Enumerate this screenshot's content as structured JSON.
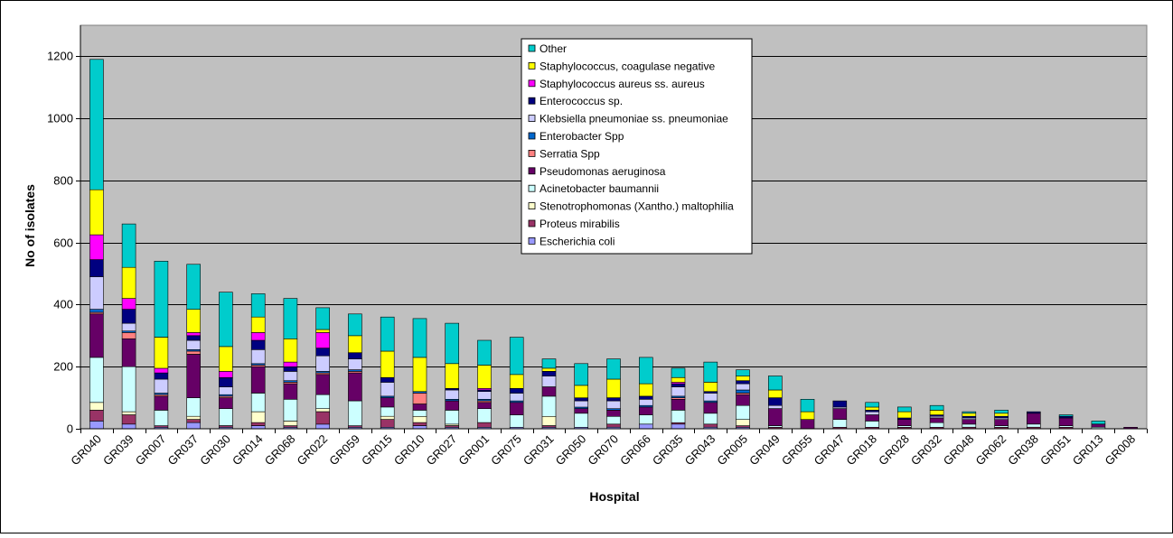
{
  "chart_data": {
    "type": "bar",
    "stacked": true,
    "xlabel": "Hospital",
    "ylabel": "No of isolates",
    "ylim": [
      0,
      1300
    ],
    "yticks": [
      0,
      200,
      400,
      600,
      800,
      1000,
      1200
    ],
    "grid": true,
    "legend_position": "top-center",
    "plot_background": "#c0c0c0",
    "categories": [
      "GR040",
      "GR039",
      "GR007",
      "GR037",
      "GR030",
      "GR014",
      "GR068",
      "GR022",
      "GR059",
      "GR015",
      "GR010",
      "GR027",
      "GR001",
      "GR075",
      "GR031",
      "GR050",
      "GR070",
      "GR066",
      "GR035",
      "GR043",
      "GR005",
      "GR049",
      "GR055",
      "GR047",
      "GR018",
      "GR028",
      "GR032",
      "GR048",
      "GR062",
      "GR038",
      "GR051",
      "GR013",
      "GR008"
    ],
    "series": [
      {
        "name": "Escherichia coli",
        "color": "#9999ff",
        "values": [
          25,
          15,
          5,
          20,
          5,
          10,
          5,
          15,
          5,
          5,
          10,
          5,
          5,
          5,
          5,
          5,
          5,
          15,
          15,
          5,
          5,
          0,
          0,
          0,
          0,
          0,
          0,
          0,
          0,
          0,
          0,
          0,
          0
        ]
      },
      {
        "name": "Proteus mirabilis",
        "color": "#993366",
        "values": [
          35,
          30,
          5,
          10,
          5,
          10,
          5,
          40,
          5,
          25,
          10,
          5,
          15,
          0,
          5,
          0,
          10,
          0,
          5,
          10,
          5,
          5,
          0,
          5,
          5,
          5,
          5,
          5,
          5,
          5,
          5,
          0,
          0
        ]
      },
      {
        "name": "Stenotrophomonas (Xantho.) maltophilia",
        "color": "#ffffcc",
        "values": [
          25,
          10,
          0,
          10,
          0,
          35,
          15,
          10,
          0,
          10,
          20,
          5,
          0,
          0,
          30,
          0,
          0,
          0,
          0,
          0,
          20,
          0,
          0,
          0,
          0,
          0,
          0,
          0,
          0,
          0,
          0,
          0,
          0
        ]
      },
      {
        "name": "Acinetobacter baumannii",
        "color": "#ccffff",
        "values": [
          145,
          145,
          50,
          60,
          55,
          60,
          70,
          45,
          80,
          30,
          20,
          45,
          45,
          40,
          65,
          45,
          25,
          30,
          40,
          35,
          45,
          5,
          0,
          25,
          20,
          5,
          15,
          10,
          5,
          10,
          5,
          5,
          0
        ]
      },
      {
        "name": "Pseudomonas aeruginosa",
        "color": "#660066",
        "values": [
          140,
          90,
          45,
          140,
          35,
          85,
          50,
          65,
          90,
          30,
          20,
          30,
          20,
          40,
          30,
          15,
          20,
          25,
          35,
          35,
          35,
          55,
          30,
          35,
          20,
          20,
          15,
          15,
          20,
          35,
          25,
          10,
          5
        ]
      },
      {
        "name": "Serratia Spp",
        "color": "#ff8080",
        "values": [
          5,
          20,
          5,
          10,
          5,
          5,
          5,
          5,
          5,
          0,
          35,
          0,
          5,
          0,
          0,
          0,
          0,
          0,
          5,
          0,
          5,
          0,
          0,
          0,
          0,
          0,
          0,
          0,
          0,
          0,
          0,
          0,
          0
        ]
      },
      {
        "name": "Enterobacter Spp",
        "color": "#0066cc",
        "values": [
          10,
          5,
          5,
          5,
          5,
          5,
          5,
          5,
          5,
          5,
          5,
          5,
          5,
          5,
          0,
          5,
          5,
          5,
          5,
          5,
          10,
          0,
          0,
          0,
          0,
          0,
          0,
          0,
          0,
          0,
          0,
          0,
          0
        ]
      },
      {
        "name": "Klebsiella pneumoniae ss. pneumoniae",
        "color": "#ccccff",
        "values": [
          105,
          25,
          45,
          30,
          25,
          45,
          30,
          50,
          35,
          45,
          0,
          30,
          25,
          25,
          35,
          20,
          25,
          20,
          30,
          25,
          20,
          10,
          0,
          5,
          10,
          0,
          5,
          5,
          5,
          0,
          0,
          0,
          0
        ]
      },
      {
        "name": "Enterococcus sp.",
        "color": "#000080",
        "values": [
          55,
          45,
          20,
          15,
          30,
          30,
          15,
          25,
          20,
          15,
          0,
          5,
          5,
          15,
          15,
          10,
          10,
          10,
          10,
          5,
          10,
          25,
          0,
          20,
          5,
          5,
          5,
          5,
          5,
          5,
          5,
          0,
          0
        ]
      },
      {
        "name": "Staphylococcus aureus ss. aureus",
        "color": "#ff00ff",
        "values": [
          80,
          35,
          15,
          10,
          20,
          25,
          15,
          50,
          0,
          0,
          0,
          0,
          5,
          0,
          0,
          0,
          0,
          0,
          5,
          0,
          0,
          0,
          0,
          0,
          0,
          0,
          0,
          0,
          0,
          0,
          0,
          0,
          0
        ]
      },
      {
        "name": "Staphylococcus, coagulase negative",
        "color": "#ffff00",
        "values": [
          145,
          100,
          100,
          75,
          80,
          50,
          75,
          10,
          55,
          85,
          110,
          80,
          75,
          45,
          10,
          40,
          60,
          40,
          15,
          30,
          15,
          25,
          25,
          0,
          10,
          20,
          15,
          10,
          10,
          0,
          0,
          0,
          0
        ]
      },
      {
        "name": "Other",
        "color": "#00cccc",
        "values": [
          420,
          140,
          245,
          145,
          175,
          75,
          130,
          70,
          70,
          110,
          125,
          130,
          80,
          120,
          30,
          70,
          65,
          85,
          30,
          65,
          20,
          45,
          40,
          0,
          15,
          15,
          15,
          5,
          10,
          0,
          5,
          10,
          0
        ]
      }
    ]
  }
}
